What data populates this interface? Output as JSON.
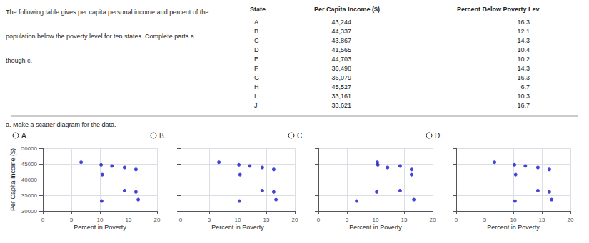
{
  "annotations": {
    "problem_text": [
      "The following table gives per capita personal income and percent of the",
      "population below the poverty level for ten states. Complete parts a",
      "though c."
    ],
    "intro_text": "a. Make a scatter diagram for the data.",
    "table": {
      "header": [
        "State",
        "Per Capita Income ($)",
        "Percent Below Poverty Lev"
      ],
      "rows": [
        [
          "A",
          "43,244",
          "16.3"
        ],
        [
          "B",
          "44,337",
          "12.1"
        ],
        [
          "C",
          "43,867",
          "14.3"
        ],
        [
          "D",
          "41,565",
          "10.4"
        ],
        [
          "E",
          "44,703",
          "10.2"
        ],
        [
          "F",
          "36,498",
          "14.3"
        ],
        [
          "G",
          "36,079",
          "16.3"
        ],
        [
          "H",
          "45,527",
          "6.7"
        ],
        [
          "I",
          "33,161",
          "10.3"
        ],
        [
          "J",
          "33,621",
          "16.7"
        ]
      ]
    }
  },
  "chart_data": [
    {
      "type": "scatter",
      "title": "A.",
      "marker": "circle",
      "color": "#1515cc",
      "x": [
        16.3,
        12.1,
        14.3,
        10.4,
        10.2,
        14.3,
        16.3,
        6.7,
        10.3,
        16.7
      ],
      "values": [
        43244,
        44337,
        43867,
        41565,
        44703,
        36498,
        36079,
        45527,
        33161,
        33621
      ],
      "xlabel": "Percent in Poverty",
      "ylabel": "Per Capita Income ($)",
      "xlim": [
        0,
        20
      ],
      "ylim": [
        30000,
        50000
      ],
      "xticks": [
        0,
        5,
        10,
        15,
        20
      ],
      "yticks": [
        30000,
        35000,
        40000,
        45000,
        50000
      ],
      "grid": true
    },
    {
      "type": "scatter",
      "title": "B.",
      "marker": "circle",
      "color": "#1515cc",
      "x": [
        6.7,
        10.2,
        10.3,
        10.4,
        12.1,
        14.3,
        14.3,
        16.3,
        16.3,
        16.7
      ],
      "values": [
        45527,
        44703,
        33161,
        41565,
        44337,
        43867,
        36498,
        43244,
        36079,
        33621
      ],
      "xlabel": "Percent in Poverty",
      "xlim": [
        0,
        20
      ],
      "ylim": [
        30000,
        50000
      ],
      "xticks": [
        0,
        5,
        10,
        15,
        20
      ],
      "yticks": [
        30000,
        35000,
        40000,
        45000,
        50000
      ],
      "grid": true,
      "tick_labels": "x"
    },
    {
      "type": "scatter",
      "title": "C.",
      "marker": "circle",
      "color": "#1515cc",
      "x": [
        6.7,
        10.2,
        10.3,
        10.4,
        12.1,
        14.3,
        14.3,
        16.3,
        16.3,
        16.7
      ],
      "values": [
        33161,
        36079,
        45527,
        44703,
        43867,
        44337,
        36498,
        43244,
        41565,
        33621
      ],
      "xlabel": "Percent in Poverty",
      "xlim": [
        0,
        20
      ],
      "ylim": [
        30000,
        50000
      ],
      "xticks": [
        0,
        5,
        10,
        15,
        20
      ],
      "yticks": [
        30000,
        35000,
        40000,
        45000,
        50000
      ],
      "grid": true,
      "tick_labels": "x"
    },
    {
      "type": "scatter",
      "title": "D.",
      "marker": "circle",
      "color": "#1515cc",
      "x": [
        16.3,
        12.1,
        14.3,
        10.4,
        10.2,
        14.3,
        16.3,
        6.7,
        10.3,
        16.7
      ],
      "values": [
        43244,
        44337,
        43867,
        41565,
        44703,
        36498,
        36079,
        45527,
        33161,
        33621
      ],
      "xlabel": "Percent in Poverty",
      "xlim": [
        0,
        20
      ],
      "ylim": [
        30000,
        50000
      ],
      "xticks": [
        0,
        5,
        10,
        15,
        20
      ],
      "yticks": [
        30000,
        35000,
        40000,
        45000,
        50000
      ],
      "grid": true,
      "tick_labels": "x"
    }
  ]
}
